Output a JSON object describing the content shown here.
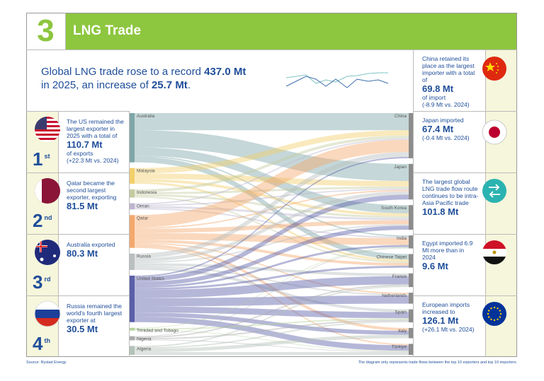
{
  "header": {
    "number": "3",
    "title": "LNG Trade"
  },
  "intro": {
    "text1": "Global LNG trade rose to a record",
    "value1": "437.0 Mt",
    "text2": "in 2025, an increase of",
    "value2": "25.7 Mt",
    "text3": "."
  },
  "exporter_rows": [
    {
      "rank": "1",
      "suffix": "st",
      "text": "The US remained the largest exporter in 2025 with a total of",
      "value": "110.7 Mt",
      "after": "of exports",
      "change": "(+22.3 Mt vs. 2024)"
    },
    {
      "rank": "2",
      "suffix": "nd",
      "text": "Qatar became the second largest exporter, exporting",
      "value": "81.5 Mt"
    },
    {
      "rank": "3",
      "suffix": "rd",
      "text": "Australia exported",
      "value": "80.3 Mt"
    },
    {
      "rank": "4",
      "suffix": "th",
      "text": "Russia remained the world's fourth largest exporter at",
      "value": "30.5 Mt"
    }
  ],
  "importer_rows": [
    {
      "text": "China retained its place as the largest importer with a total of",
      "value": "69.8 Mt",
      "after": "of import",
      "change": "(-8.9 Mt vs. 2024)"
    },
    {
      "text": "Japan imported",
      "value": "67.4 Mt",
      "change": "(-0.4 Mt vs. 2024)"
    },
    {
      "text": "The largest global LNG trade flow route continues to be intra-Asia Pacific trade",
      "value": "101.8 Mt"
    },
    {
      "text": "Egypt imported 6.9 Mt more than in 2024",
      "value": "9.6 Mt"
    },
    {
      "text": "European imports increased to",
      "value": "126.1 Mt",
      "change": "(+26.1 Mt vs. 2024)"
    }
  ],
  "chart_data": {
    "type": "sankey",
    "exporters": [
      "Australia",
      "Malaysia",
      "Indonesia",
      "Oman",
      "Qatar",
      "Russia",
      "United States",
      "Trinidad and Tobago",
      "Nigeria",
      "Algeria"
    ],
    "exporter_colors": [
      "#7fa6a8",
      "#f2cf6a",
      "#c3cba0",
      "#bdb5cf",
      "#f3a86c",
      "#b9bebe",
      "#5a5fa8",
      "#b5d49c",
      "#aaaaaa",
      "#b3c2b8"
    ],
    "importers": [
      "China",
      "Japan",
      "South Korea",
      "India",
      "Chinese Taipei",
      "France",
      "Netherlands",
      "Spain",
      "Italy",
      "Türkiye"
    ],
    "importer_color": "#8c8c8c",
    "links": [
      {
        "from": "Australia",
        "to": "China",
        "value": 25
      },
      {
        "from": "Australia",
        "to": "Japan",
        "value": 25
      },
      {
        "from": "Australia",
        "to": "South Korea",
        "value": 12
      },
      {
        "from": "Australia",
        "to": "India",
        "value": 2
      },
      {
        "from": "Australia",
        "to": "Chinese Taipei",
        "value": 8
      },
      {
        "from": "Malaysia",
        "to": "China",
        "value": 8
      },
      {
        "from": "Malaysia",
        "to": "Japan",
        "value": 8
      },
      {
        "from": "Malaysia",
        "to": "South Korea",
        "value": 4
      },
      {
        "from": "Malaysia",
        "to": "Chinese Taipei",
        "value": 3
      },
      {
        "from": "Indonesia",
        "to": "China",
        "value": 4
      },
      {
        "from": "Indonesia",
        "to": "Japan",
        "value": 3
      },
      {
        "from": "Indonesia",
        "to": "South Korea",
        "value": 3
      },
      {
        "from": "Indonesia",
        "to": "Chinese Taipei",
        "value": 2
      },
      {
        "from": "Oman",
        "to": "China",
        "value": 2
      },
      {
        "from": "Oman",
        "to": "Japan",
        "value": 2
      },
      {
        "from": "Oman",
        "to": "South Korea",
        "value": 3
      },
      {
        "from": "Oman",
        "to": "India",
        "value": 2
      },
      {
        "from": "Qatar",
        "to": "China",
        "value": 18
      },
      {
        "from": "Qatar",
        "to": "Japan",
        "value": 2
      },
      {
        "from": "Qatar",
        "to": "South Korea",
        "value": 6
      },
      {
        "from": "Qatar",
        "to": "India",
        "value": 10
      },
      {
        "from": "Qatar",
        "to": "Chinese Taipei",
        "value": 4
      },
      {
        "from": "Qatar",
        "to": "Netherlands",
        "value": 2
      },
      {
        "from": "Qatar",
        "to": "Italy",
        "value": 4
      },
      {
        "from": "Qatar",
        "to": "Türkiye",
        "value": 2
      },
      {
        "from": "Russia",
        "to": "China",
        "value": 7
      },
      {
        "from": "Russia",
        "to": "Japan",
        "value": 5
      },
      {
        "from": "Russia",
        "to": "South Korea",
        "value": 2
      },
      {
        "from": "Russia",
        "to": "France",
        "value": 4
      },
      {
        "from": "Russia",
        "to": "Netherlands",
        "value": 2
      },
      {
        "from": "Russia",
        "to": "Spain",
        "value": 4
      },
      {
        "from": "United States",
        "to": "China",
        "value": 2
      },
      {
        "from": "United States",
        "to": "Japan",
        "value": 7
      },
      {
        "from": "United States",
        "to": "South Korea",
        "value": 6
      },
      {
        "from": "United States",
        "to": "India",
        "value": 3
      },
      {
        "from": "United States",
        "to": "Chinese Taipei",
        "value": 3
      },
      {
        "from": "United States",
        "to": "France",
        "value": 12
      },
      {
        "from": "United States",
        "to": "Netherlands",
        "value": 12
      },
      {
        "from": "United States",
        "to": "Spain",
        "value": 9
      },
      {
        "from": "United States",
        "to": "Italy",
        "value": 6
      },
      {
        "from": "United States",
        "to": "Türkiye",
        "value": 8
      },
      {
        "from": "Trinidad and Tobago",
        "to": "India",
        "value": 1
      },
      {
        "from": "Trinidad and Tobago",
        "to": "Spain",
        "value": 2
      },
      {
        "from": "Trinidad and Tobago",
        "to": "Türkiye",
        "value": 1
      },
      {
        "from": "Nigeria",
        "to": "India",
        "value": 1
      },
      {
        "from": "Nigeria",
        "to": "France",
        "value": 2
      },
      {
        "from": "Nigeria",
        "to": "Spain",
        "value": 2
      },
      {
        "from": "Nigeria",
        "to": "Türkiye",
        "value": 1
      },
      {
        "from": "Algeria",
        "to": "France",
        "value": 2
      },
      {
        "from": "Algeria",
        "to": "Spain",
        "value": 2
      },
      {
        "from": "Algeria",
        "to": "Italy",
        "value": 5
      },
      {
        "from": "Algeria",
        "to": "Türkiye",
        "value": 4
      }
    ]
  },
  "footer": {
    "source": "Source: Rystad Energy",
    "note": "The diagram only represents trade flows between the top 10 exporters and top 10 importers."
  }
}
